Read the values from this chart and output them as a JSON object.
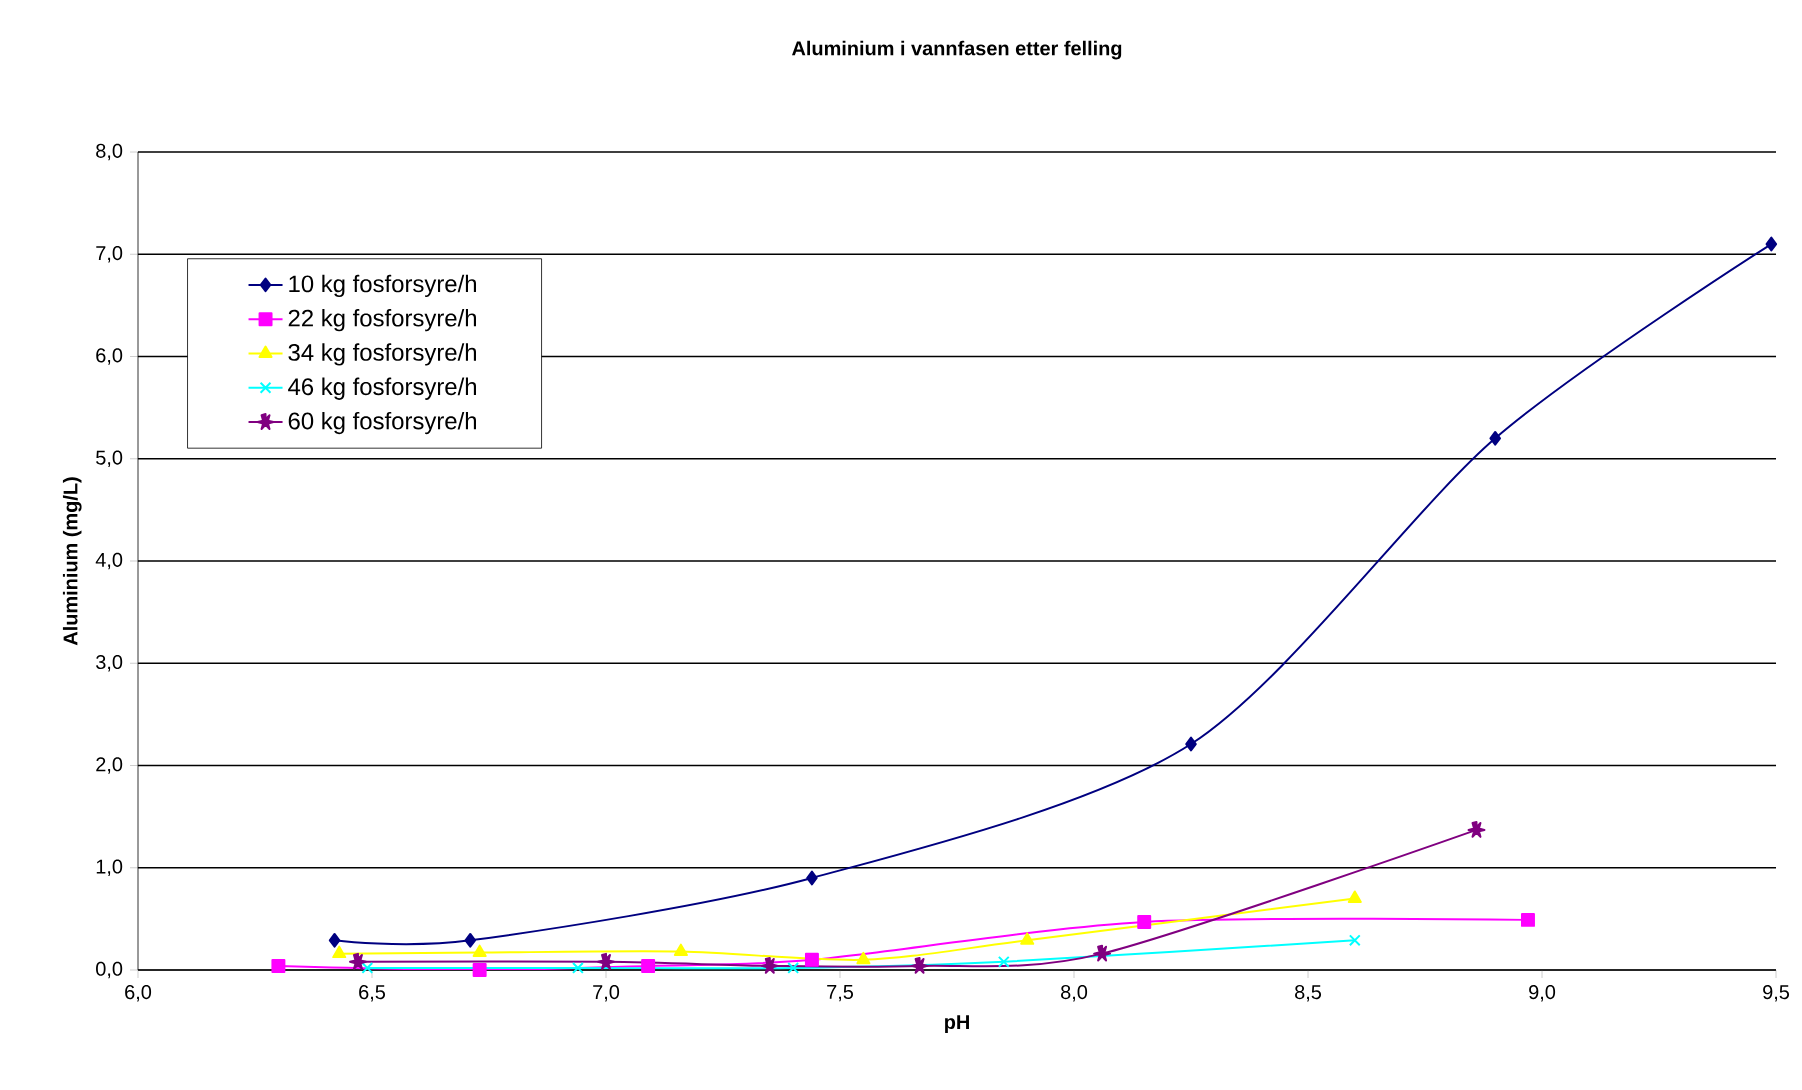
{
  "chart_data": {
    "type": "line",
    "title": "Aluminium i vannfasen etter felling",
    "xlabel": "pH",
    "ylabel": "Aluminium (mg/L)",
    "xlim": [
      6.0,
      9.5
    ],
    "ylim": [
      0,
      8
    ],
    "xticks": [
      {
        "value": 6.0,
        "label": "6,0"
      },
      {
        "value": 6.5,
        "label": "6,5"
      },
      {
        "value": 7.0,
        "label": "7,0"
      },
      {
        "value": 7.5,
        "label": "7,5"
      },
      {
        "value": 8.0,
        "label": "8,0"
      },
      {
        "value": 8.5,
        "label": "8,5"
      },
      {
        "value": 9.0,
        "label": "9,0"
      },
      {
        "value": 9.5,
        "label": "9,5"
      }
    ],
    "yticks": [
      {
        "value": 0,
        "label": "0,0"
      },
      {
        "value": 1,
        "label": "1,0"
      },
      {
        "value": 2,
        "label": "2,0"
      },
      {
        "value": 3,
        "label": "3,0"
      },
      {
        "value": 4,
        "label": "4,0"
      },
      {
        "value": 5,
        "label": "5,0"
      },
      {
        "value": 6,
        "label": "6,0"
      },
      {
        "value": 7,
        "label": "7,0"
      },
      {
        "value": 8,
        "label": "8,0"
      }
    ],
    "grid": "y",
    "legend": "top left",
    "series": [
      {
        "name": "10 kg fosforsyre/h",
        "color": "#000080",
        "marker": "diamond",
        "x": [
          6.42,
          6.71,
          7.44,
          8.25,
          8.9,
          9.49
        ],
        "values": [
          0.29,
          0.29,
          0.9,
          2.21,
          5.2,
          7.1
        ]
      },
      {
        "name": "22 kg fosforsyre/h",
        "color": "#ff00ff",
        "marker": "square",
        "x": [
          6.3,
          6.73,
          7.09,
          7.44,
          8.15,
          8.97
        ],
        "values": [
          0.04,
          0.0,
          0.04,
          0.1,
          0.47,
          0.49
        ]
      },
      {
        "name": "34 kg fosforsyre/h",
        "color": "#ffff00",
        "marker": "triangle",
        "x": [
          6.43,
          6.73,
          7.16,
          7.55,
          7.9,
          8.6
        ],
        "values": [
          0.16,
          0.17,
          0.18,
          0.1,
          0.29,
          0.7
        ]
      },
      {
        "name": "46 kg fosforsyre/h",
        "color": "#00ffff",
        "marker": "cross",
        "x": [
          6.49,
          6.94,
          7.4,
          7.85,
          8.6
        ],
        "values": [
          0.02,
          0.02,
          0.02,
          0.08,
          0.29
        ]
      },
      {
        "name": "60 kg fosforsyre/h",
        "color": "#800080",
        "marker": "star",
        "x": [
          6.47,
          7.0,
          7.35,
          7.67,
          8.06,
          8.86
        ],
        "values": [
          0.08,
          0.08,
          0.04,
          0.04,
          0.16,
          1.37
        ]
      }
    ]
  }
}
